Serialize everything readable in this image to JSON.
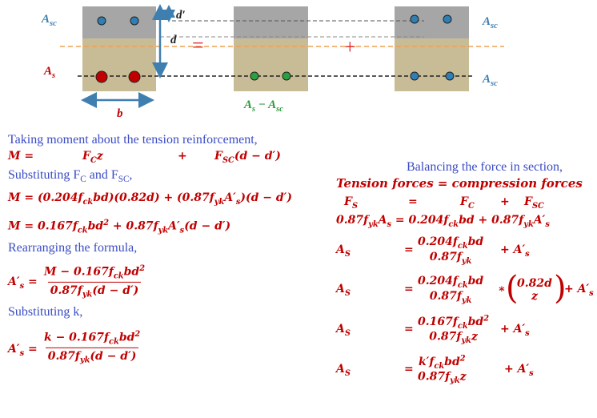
{
  "diagram": {
    "asc_left": "A_{sc}",
    "as_left": "A_{s}",
    "d_prime": "d′",
    "d": "d",
    "equals": "=",
    "plus": "+",
    "b": "b",
    "middle": "A_{s} − A_{sc}",
    "asc_right_top": "A_{sc}",
    "asc_right_bottom": "A_{sc}"
  },
  "left": {
    "line1": "Taking moment about the tension reinforcement,",
    "moment": {
      "lhs": "M =",
      "t1": "F_{C}z",
      "plus": "+",
      "t2": "F_{SC}(d − d′)"
    },
    "line3": "Substituting  F_{C} and  F_{SC},",
    "eq1": "M = (0.204f_{ck}bd)(0.82d) + (0.87f_{yk}A′_{s})(d − d′)",
    "eq2": "M = 0.167f_{ck}bd^{2} + 0.87f_{yk}A′_{s}(d − d′)",
    "line6": "Rearranging the formula,",
    "eq3": {
      "lhs": "A′_{s} =",
      "num": "M − 0.167f_{ck}bd^{2}",
      "den": "0.87f_{yk}(d − d′)"
    },
    "line8": "Substituting k,",
    "eq4": {
      "lhs": "A′_{s} =",
      "num": "k − 0.167f_{ck}bd^{2}",
      "den": "0.87f_{yk}(d − d′)"
    }
  },
  "right": {
    "line1": "Balancing the force in section,",
    "line2": "Tension forces = compression forces",
    "forces": {
      "fs": "F_{S}",
      "eq": "=",
      "fc": "F_{C}",
      "plus": "+",
      "fsc": "F_{SC}"
    },
    "eq1": "0.87f_{yk}A_{s} =  0.204f_{ck}bd + 0.87f_{yk}A′_{s}",
    "rows": [
      {
        "lhs": "A_{S}",
        "eq": "=",
        "num": "0.204f_{ck}bd",
        "den": "0.87f_{yk}",
        "tail": "+ A′_{s}"
      },
      {
        "lhs": "A_{S}",
        "eq": "=",
        "num": "0.204f_{ck}bd",
        "den": "0.87f_{yk}",
        "times": "∗",
        "lparen": "(",
        "num2": "0.82d",
        "den2": "z",
        "rparen": ")",
        "tail": "+ A′_{s}"
      },
      {
        "lhs": "A_{S}",
        "eq": "=",
        "num": "0.167f_{ck}bd^{2}",
        "den": "0.87f_{yk}z",
        "tail": "+ A′_{s}"
      },
      {
        "lhs": "A_{S}",
        "eq": "=",
        "num": "k′f_{ck}bd^{2}",
        "den": "0.87f_{yk}z",
        "tail": "+ A′_{s}"
      }
    ]
  }
}
